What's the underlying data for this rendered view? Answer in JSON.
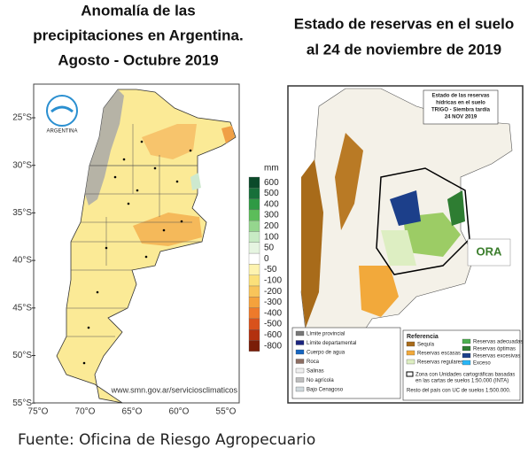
{
  "left_panel": {
    "title_lines": [
      "Anomalía de las",
      "precipitaciones en Argentina.",
      "Agosto - Octubre 2019"
    ],
    "latitude_labels": [
      "25°S",
      "30°S",
      "35°S",
      "40°S",
      "45°S",
      "50°S",
      "55°S"
    ],
    "longitude_labels": [
      "75°O",
      "70°O",
      "65°O",
      "60°O",
      "55°O"
    ],
    "colorbar_unit": "mm",
    "colorbar_labels": [
      600,
      500,
      400,
      300,
      200,
      100,
      50,
      0,
      -50,
      -100,
      -200,
      -300,
      -400,
      -500,
      -600,
      -800
    ],
    "logo_text": "ARGENTINA",
    "website": "www.smn.gov.ar/serviciosclimaticos"
  },
  "right_panel": {
    "title_lines": [
      "Estado de reservas en el suelo",
      "al 24 de noviembre de 2019"
    ],
    "inset_title_lines": [
      "Estado de las reservas",
      "hídricas en el suelo",
      "TRIGO - Siembra tardía",
      "24 NOV 2019"
    ],
    "logo_text": "ORA",
    "legend_title": "Referencia",
    "legend_left": [
      "Límite provincial",
      "Límite departamental",
      "Cuerpo de agua",
      "Roca",
      "Salinas",
      "No agrícola",
      "Bajo Cenagoso"
    ],
    "legend_mid": [
      "Sequía",
      "Reservas escasas",
      "Reservas regulares"
    ],
    "legend_right": [
      "Reservas adecuadas",
      "Reservas óptimas",
      "Reservas excesivas",
      "Exceso"
    ],
    "note_lines": [
      "Zona con Unidades cartográficas basadas",
      "en las cartas de suelos 1:50.000 (INTA)",
      "Resto del país con UC de suelos 1:500.000."
    ]
  },
  "footer": "Fuente: Oficina de Riesgo Agropecuario"
}
